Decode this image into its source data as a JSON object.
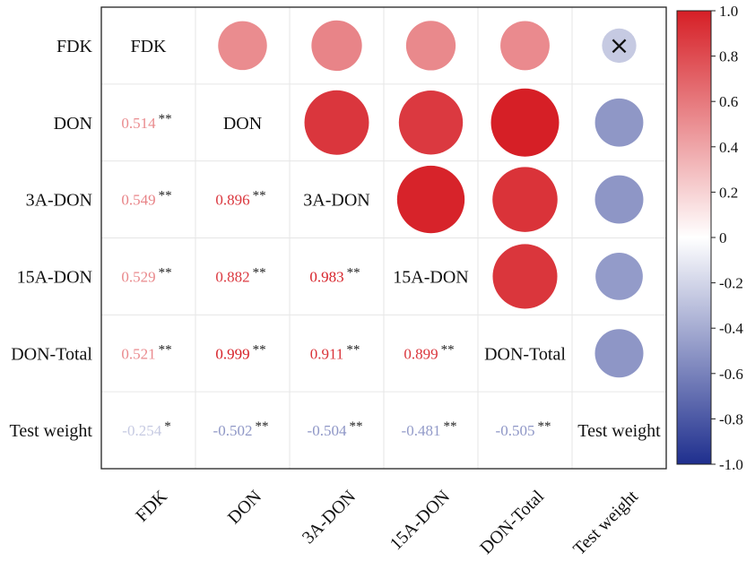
{
  "chart_data": {
    "type": "heatmap",
    "subtype": "correlation-matrix",
    "variables": [
      "FDK",
      "DON",
      "3A-DON",
      "15A-DON",
      "DON-Total",
      "Test weight"
    ],
    "lower_triangle": [
      {
        "row": "DON",
        "col": "FDK",
        "value": 0.514,
        "label": "0.514",
        "sig": "**"
      },
      {
        "row": "3A-DON",
        "col": "FDK",
        "value": 0.549,
        "label": "0.549",
        "sig": "**"
      },
      {
        "row": "3A-DON",
        "col": "DON",
        "value": 0.896,
        "label": "0.896",
        "sig": "**"
      },
      {
        "row": "15A-DON",
        "col": "FDK",
        "value": 0.529,
        "label": "0.529",
        "sig": "**"
      },
      {
        "row": "15A-DON",
        "col": "DON",
        "value": 0.882,
        "label": "0.882",
        "sig": "**"
      },
      {
        "row": "15A-DON",
        "col": "3A-DON",
        "value": 0.983,
        "label": "0.983",
        "sig": "**"
      },
      {
        "row": "DON-Total",
        "col": "FDK",
        "value": 0.521,
        "label": "0.521",
        "sig": "**"
      },
      {
        "row": "DON-Total",
        "col": "DON",
        "value": 0.999,
        "label": "0.999",
        "sig": "**"
      },
      {
        "row": "DON-Total",
        "col": "3A-DON",
        "value": 0.911,
        "label": "0.911",
        "sig": "**"
      },
      {
        "row": "DON-Total",
        "col": "15A-DON",
        "value": 0.899,
        "label": "0.899",
        "sig": "**"
      },
      {
        "row": "Test weight",
        "col": "FDK",
        "value": -0.254,
        "label": "-0.254",
        "sig": "*"
      },
      {
        "row": "Test weight",
        "col": "DON",
        "value": -0.502,
        "label": "-0.502",
        "sig": "**"
      },
      {
        "row": "Test weight",
        "col": "3A-DON",
        "value": -0.504,
        "label": "-0.504",
        "sig": "**"
      },
      {
        "row": "Test weight",
        "col": "15A-DON",
        "value": -0.481,
        "label": "-0.481",
        "sig": "**"
      },
      {
        "row": "Test weight",
        "col": "DON-Total",
        "value": -0.505,
        "label": "-0.505",
        "sig": "**"
      }
    ],
    "diagonal_labels": [
      "FDK",
      "DON",
      "3A-DON",
      "15A-DON",
      "DON-Total",
      "Test weight"
    ],
    "nonsignificant_marker": "×",
    "colorbar": {
      "min": -1.0,
      "max": 1.0,
      "ticks": [
        "1.0",
        "0.8",
        "0.6",
        "0.4",
        "0.2",
        "0",
        "-0.2",
        "-0.4",
        "-0.6",
        "-0.8",
        "-1.0"
      ],
      "colors": {
        "neg": "#1f2f8e",
        "mid": "#ffffff",
        "pos": "#d61f26"
      }
    },
    "x_tick_labels": [
      "FDK",
      "DON",
      "3A-DON",
      "15A-DON",
      "DON-Total",
      "Test weight"
    ],
    "y_tick_labels": [
      "FDK",
      "DON",
      "3A-DON",
      "15A-DON",
      "DON-Total",
      "Test weight"
    ],
    "x_label_rotation_deg": -45,
    "grid": true
  }
}
